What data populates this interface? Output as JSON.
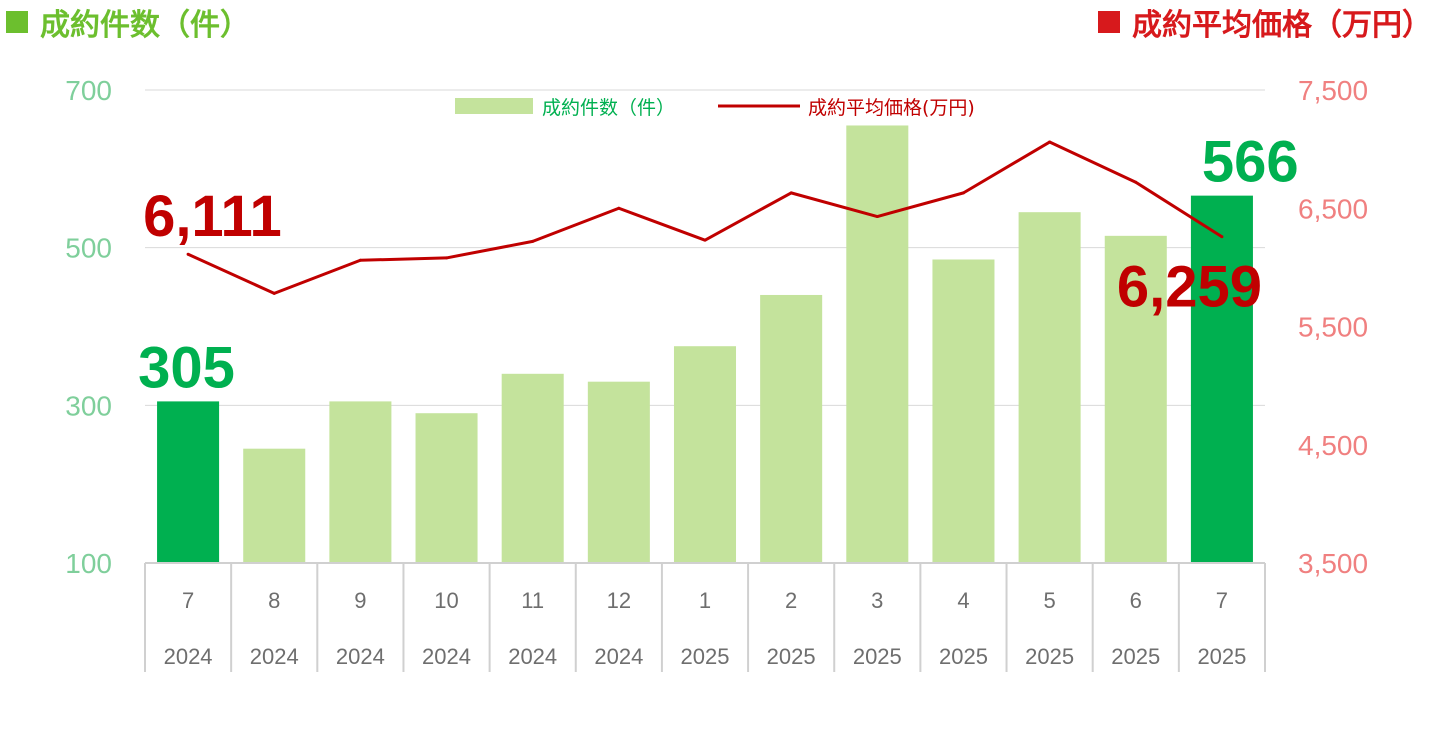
{
  "header": {
    "left_label": "成約件数（件）",
    "right_label": "成約平均価格（万円）",
    "left_color": "#6cbf2e",
    "right_color": "#d7191c"
  },
  "legend": {
    "bar_label": "成約件数（件）",
    "line_label": "成約平均価格(万円)"
  },
  "chart_data": {
    "type": "bar",
    "categories": [
      "7",
      "8",
      "9",
      "10",
      "11",
      "12",
      "1",
      "2",
      "3",
      "4",
      "5",
      "6",
      "7"
    ],
    "years": [
      "2024",
      "2024",
      "2024",
      "2024",
      "2024",
      "2024",
      "2025",
      "2025",
      "2025",
      "2025",
      "2025",
      "2025",
      "2025"
    ],
    "series": [
      {
        "name": "成約件数（件）",
        "type": "bar",
        "axis": "left",
        "values": [
          305,
          245,
          305,
          290,
          340,
          330,
          375,
          440,
          655,
          485,
          545,
          515,
          566
        ],
        "color": "#c4e39c",
        "highlight_color": "#00b050",
        "highlight_indices": [
          0,
          12
        ]
      },
      {
        "name": "成約平均価格(万円)",
        "type": "line",
        "axis": "right",
        "values": [
          6111,
          5780,
          6060,
          6080,
          6220,
          6500,
          6230,
          6630,
          6430,
          6630,
          7060,
          6720,
          6259
        ],
        "color": "#c00000"
      }
    ],
    "y_left": {
      "ticks": [
        100,
        300,
        500,
        700
      ],
      "tick_labels": [
        "100",
        "300",
        "500",
        "700"
      ],
      "ylim": [
        100,
        700
      ]
    },
    "y_right": {
      "ticks": [
        3500,
        4500,
        5500,
        6500,
        7500
      ],
      "tick_labels": [
        "3,500",
        "4,500",
        "5,500",
        "6,500",
        "7,500"
      ],
      "ylim": [
        3500,
        7500
      ]
    },
    "annotations": [
      {
        "label": "6,111",
        "series": 1,
        "index": 0,
        "color": "#c00000"
      },
      {
        "label": "305",
        "series": 0,
        "index": 0,
        "color": "#00b050"
      },
      {
        "label": "566",
        "series": 0,
        "index": 12,
        "color": "#00b050"
      },
      {
        "label": "6,259",
        "series": 1,
        "index": 12,
        "color": "#c00000"
      }
    ],
    "grid": true,
    "legend_position": "top-center"
  }
}
